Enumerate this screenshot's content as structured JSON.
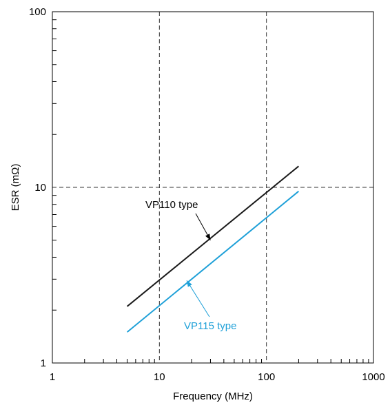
{
  "chart_data": {
    "type": "line",
    "xscale": "log",
    "yscale": "log",
    "xlim": [
      1,
      1000
    ],
    "ylim": [
      1,
      100
    ],
    "xlabel": "Frequency (MHz)",
    "ylabel": "ESR (mΩ)",
    "x_tick_labels": [
      "1",
      "10",
      "100",
      "1000"
    ],
    "y_tick_labels": [
      "1",
      "10",
      "100"
    ],
    "grid": "dashed at x=10, x=100 and y=10",
    "series": [
      {
        "name": "VP110 type",
        "color": "#1a1a1a",
        "x": [
          5,
          200
        ],
        "y": [
          2.1,
          13.2
        ]
      },
      {
        "name": "VP115 type",
        "color": "#1ea0d8",
        "x": [
          5,
          200
        ],
        "y": [
          1.5,
          9.5
        ]
      }
    ],
    "annotations": [
      {
        "text": "VP110 type",
        "color": "#000000",
        "points_to": [
          30,
          5.0
        ]
      },
      {
        "text": "VP115 type",
        "color": "#1ea0d8",
        "points_to": [
          18,
          2.95
        ]
      }
    ]
  }
}
